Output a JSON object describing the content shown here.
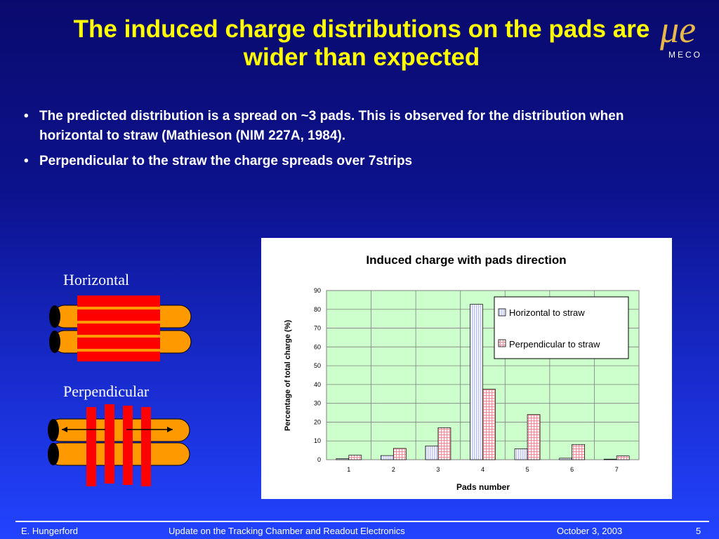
{
  "slide": {
    "title": "The induced charge distributions on the pads are wider than expected",
    "bullets": [
      "The predicted distribution is a spread on ~3 pads.  This is observed for the distribution when horizontal to straw (Mathieson (NIM 227A, 1984).",
      "Perpendicular to the straw the charge spreads over 7strips"
    ],
    "bullet_symbol": "•",
    "logo": {
      "symbol": "μe",
      "text": "MECO"
    },
    "labels": {
      "horizontal": "Horizontal",
      "perpendicular": "Perpendicular"
    }
  },
  "footer": {
    "author": "E. Hungerford",
    "talk": "Update on the Tracking Chamber and Readout Electronics",
    "date": "October 3, 2003",
    "page": "5"
  },
  "colors": {
    "title": "#ffff00",
    "plot_bg": "#ccffcc",
    "horizontal_bar": "#c8ccff",
    "perpendicular_bar": "#ffb8c0",
    "straw": "#ff9900",
    "pad": "#ff0000"
  },
  "chart_data": {
    "type": "bar",
    "title": "Induced charge with pads direction",
    "xlabel": "Pads number",
    "ylabel": "Percentage of total charge (%)",
    "categories": [
      "1",
      "2",
      "3",
      "4",
      "5",
      "6",
      "7"
    ],
    "ylim": [
      0,
      90
    ],
    "yticks": [
      0,
      10,
      20,
      30,
      40,
      50,
      60,
      70,
      80,
      90
    ],
    "grid": true,
    "legend_position": "top-right",
    "series": [
      {
        "name": "Horizontal to straw",
        "values": [
          0.5,
          2.2,
          7.3,
          82.7,
          5.8,
          0.8,
          0.3
        ]
      },
      {
        "name": "Perpendicular to straw",
        "values": [
          2.4,
          6.0,
          17.0,
          37.5,
          24.0,
          8.1,
          2.0
        ]
      }
    ]
  }
}
